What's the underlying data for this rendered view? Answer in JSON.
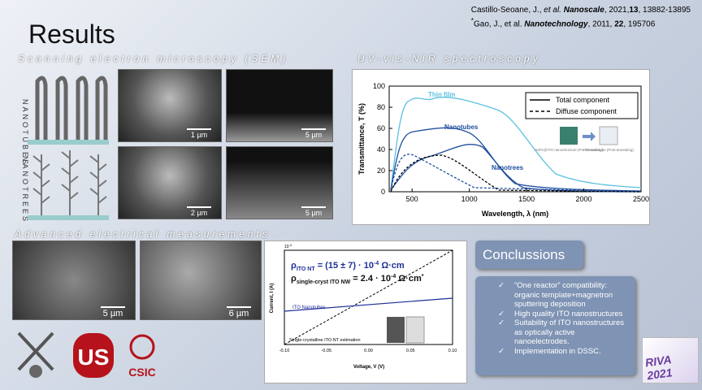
{
  "header": {
    "title": "Results",
    "ref1": [
      "Castillo-Seoane, J., ",
      "et al.",
      " ",
      "Nanoscale",
      ", 2021,",
      "13",
      ", 13882-13895"
    ],
    "ref2": [
      "*",
      "Gao, J., et al. ",
      "Nanotechnology",
      ", 2011, ",
      "22",
      ", 195706"
    ]
  },
  "sections": {
    "sem": "Scanning electron microscopy (SEM)",
    "uv": "UV-vis-NIR spectroscopy",
    "electrical": "Advanced electrical measurements"
  },
  "sem": {
    "row_labels": [
      "NANOTUBES",
      "NANOTREES"
    ],
    "scale_bars": [
      "1 µm",
      "5 µm",
      "2 µm",
      "5 µm"
    ]
  },
  "electrical_images": {
    "scale_bars": [
      "5 µm",
      "6 µm"
    ]
  },
  "uv_chart": {
    "y_label": "Transmittance, T (%)",
    "x_label": "Wavelength, λ (nm)",
    "xticks": [
      500,
      1000,
      1500,
      2000,
      2500
    ],
    "yticks": [
      0,
      20,
      40,
      60,
      80,
      100
    ],
    "legend": [
      "Total component",
      "Diffuse component"
    ],
    "annotations": [
      "Thin film",
      "Nanotubes",
      "Nanotrees"
    ],
    "inset_labels": [
      "H2Pc@ITO nanostructure (Pre-annealing)",
      "ITO nanotube (Post-annealing)"
    ]
  },
  "electrical_chart": {
    "exponent": [
      "10",
      "-4"
    ],
    "formula1": [
      "ρ",
      "ITO NT",
      " = (15 ± 7) · 10",
      "-4",
      " Ω·cm"
    ],
    "formula2": [
      "ρ",
      "single-cryst ITO NW",
      " = 2.4 · 10",
      "-4",
      " Ω·cm",
      "*"
    ],
    "series_labels": [
      "ITO Nanotubes",
      "Single-crystalline ITO NT estimation"
    ],
    "y_label": "Current, I (A)",
    "x_label": "Voltage, V (V)",
    "xticks": [
      "-0.10",
      "-0.05",
      "0.00",
      "0.05",
      "0.10"
    ]
  },
  "conclusions": {
    "title": "Conclussions",
    "items": [
      "“One reactor” compatibility: organic template+magnetron sputtering deposition",
      "High quality ITO nanostructures",
      "Suitability of ITO nanostructures as optically active nanoelectrodes.",
      "Implementation in DSSC."
    ]
  },
  "logos": {
    "csic": "CSIC",
    "riva": "RIVA 2021"
  }
}
